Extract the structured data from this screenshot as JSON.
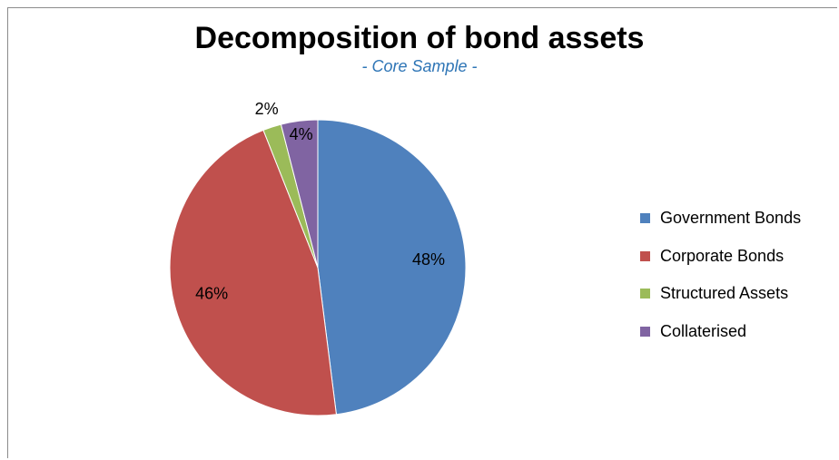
{
  "chart_data": {
    "type": "pie",
    "title": "Decomposition of bond assets",
    "subtitle": "- Core Sample -",
    "categories": [
      "Government Bonds",
      "Corporate Bonds",
      "Structured Assets",
      "Collaterised"
    ],
    "values": [
      48,
      46,
      2,
      4
    ],
    "labels": [
      "48%",
      "46%",
      "2%",
      "4%"
    ],
    "colors": [
      "#4f81bd",
      "#c0504d",
      "#9bbb59",
      "#8064a2"
    ],
    "legend_position": "right",
    "start_angle": "top",
    "direction": "clockwise"
  }
}
